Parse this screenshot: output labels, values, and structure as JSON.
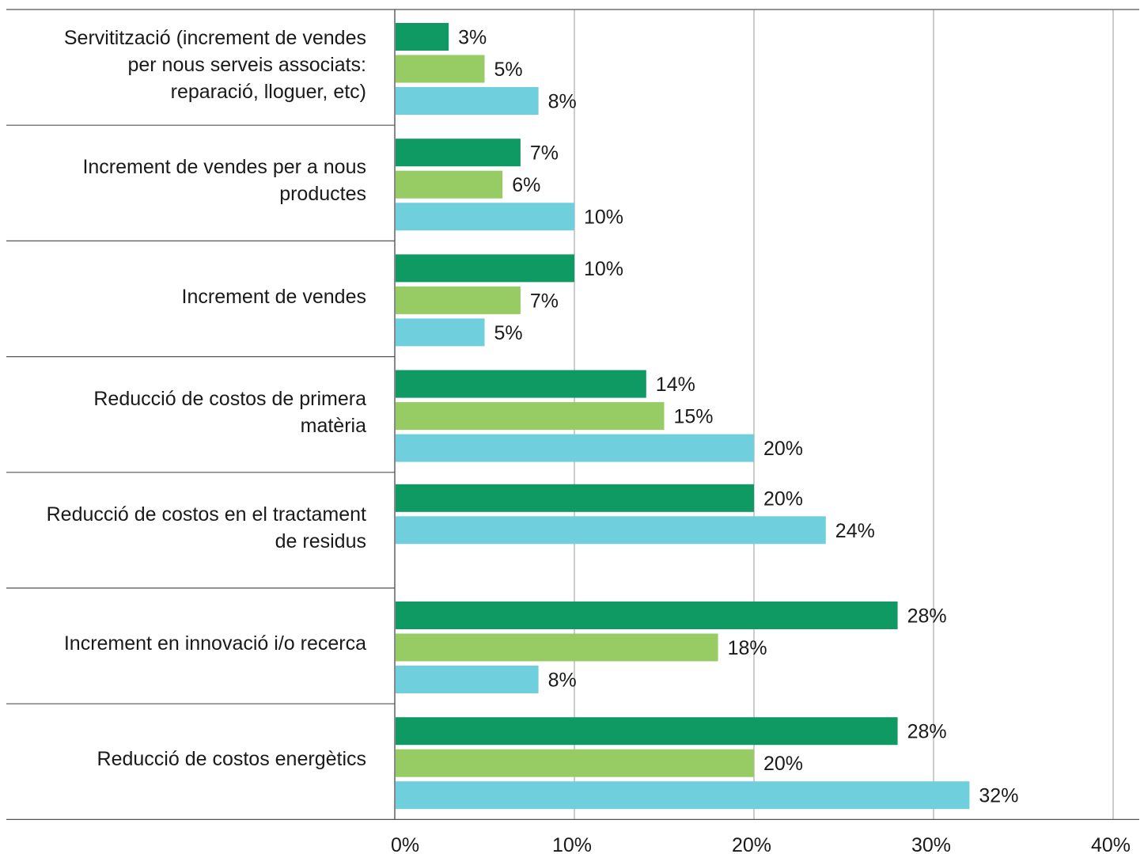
{
  "chart_data": {
    "type": "bar",
    "orientation": "horizontal",
    "categories": [
      "Servitització (increment de vendes per nous serveis associats: reparació, lloguer, etc)",
      "Increment de vendes per a nous productes",
      "Increment de vendes",
      "Reducció de costos de primera matèria",
      "Reducció de costos en  el tractament de residus",
      "Increment en innovació i/o recerca",
      "Reducció de costos energètics"
    ],
    "category_lines": [
      [
        "Servitització (increment de vendes",
        "per nous serveis associats:",
        "reparació, lloguer, etc)"
      ],
      [
        "Increment de vendes per a nous",
        "productes"
      ],
      [
        "Increment de vendes"
      ],
      [
        "Reducció de costos de primera",
        "matèria"
      ],
      [
        "Reducció de costos en  el tractament",
        "de residus"
      ],
      [
        "Increment en innovació i/o recerca"
      ],
      [
        "Reducció de costos energètics"
      ]
    ],
    "series": [
      {
        "color": "#0f9a64",
        "values": [
          3,
          7,
          10,
          14,
          20,
          28,
          28
        ],
        "labels": [
          "3%",
          "7%",
          "10%",
          "14%",
          "20%",
          "28%",
          "28%"
        ]
      },
      {
        "color": "#97cb64",
        "values": [
          5,
          6,
          7,
          15,
          null,
          18,
          20
        ],
        "labels": [
          "5%",
          "6%",
          "7%",
          "15%",
          "",
          "18%",
          "20%"
        ]
      },
      {
        "color": "#6fcfdc",
        "values": [
          8,
          10,
          5,
          20,
          24,
          8,
          32
        ],
        "labels": [
          "8%",
          "10%",
          "5%",
          "20%",
          "24%",
          "8%",
          "32%"
        ]
      }
    ],
    "xlim": [
      0,
      40
    ],
    "xticks": [
      0,
      10,
      20,
      30,
      40
    ],
    "xtick_labels": [
      "0%",
      "10%",
      "20%",
      "30%",
      "40%"
    ],
    "grid": true,
    "legend": "none"
  }
}
